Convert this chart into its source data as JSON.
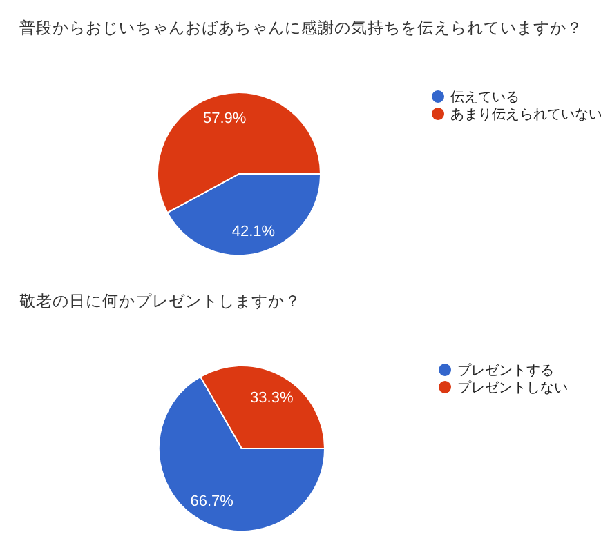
{
  "chart_data": [
    {
      "type": "pie",
      "title": "普段からおじいちゃんおばあちゃんに感謝の気持ちを伝えられていますか？",
      "categories": [
        "伝えている",
        "あまり伝えられていない"
      ],
      "values": [
        42.1,
        57.9
      ],
      "colors": [
        "#3366cc",
        "#dc3912"
      ],
      "value_labels": [
        "42.1%",
        "57.9%"
      ],
      "legend": "right"
    },
    {
      "type": "pie",
      "title": "敬老の日に何かプレゼントしますか？",
      "categories": [
        "プレゼントする",
        "プレゼントしない"
      ],
      "values": [
        66.7,
        33.3
      ],
      "colors": [
        "#3366cc",
        "#dc3912"
      ],
      "value_labels": [
        "66.7%",
        "33.3%"
      ],
      "legend": "right"
    }
  ]
}
